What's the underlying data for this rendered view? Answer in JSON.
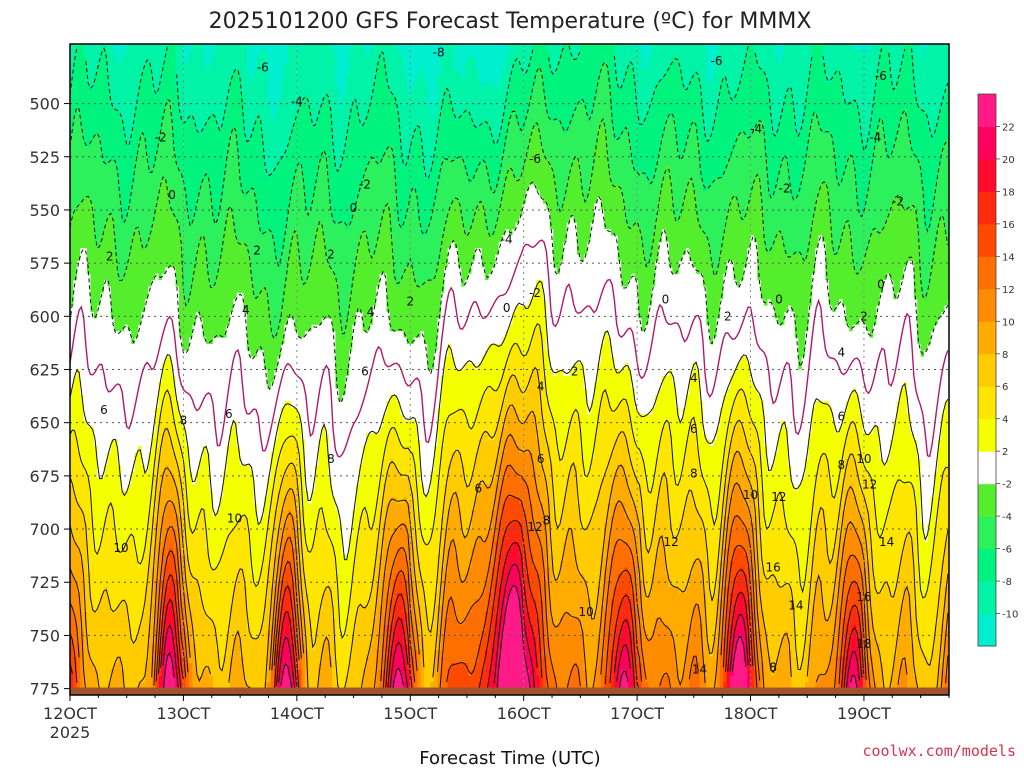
{
  "chart_data": {
    "type": "heatmap",
    "title": "2025101200 GFS Forecast Temperature (ºC) for MMMX",
    "xlabel": "Forecast Time (UTC)",
    "ylabel": "",
    "credit": "coolwx.com/models",
    "x_start_year": "2025",
    "x_ticks": [
      "12OCT",
      "13OCT",
      "14OCT",
      "15OCT",
      "16OCT",
      "17OCT",
      "18OCT",
      "19OCT"
    ],
    "x_days": [
      0,
      1,
      2,
      3,
      4,
      5,
      6,
      7
    ],
    "xlim": [
      0,
      7.75
    ],
    "y_ticks": [
      500,
      525,
      550,
      575,
      600,
      625,
      650,
      675,
      700,
      725,
      750,
      775
    ],
    "ylim": [
      778,
      472
    ],
    "colorbar": {
      "levels": [
        -12,
        -10,
        -8,
        -6,
        -4,
        -2,
        2,
        4,
        6,
        8,
        10,
        12,
        14,
        16,
        18,
        20,
        22,
        24
      ],
      "tick_labels": [
        "-10",
        "-8",
        "-6",
        "-4",
        "-2",
        "2",
        "4",
        "6",
        "8",
        "10",
        "12",
        "14",
        "16",
        "18",
        "20",
        "22"
      ],
      "colors": [
        "#00efcf",
        "#00f3a6",
        "#00f37c",
        "#2cf05c",
        "#55ee2c",
        "#ffffff",
        "#f4ff00",
        "#ffe600",
        "#ffcc00",
        "#ffab00",
        "#ff8c00",
        "#ff6e00",
        "#ff4a00",
        "#ff2a10",
        "#ff0a2c",
        "#ff005c",
        "#ff1a88"
      ],
      "colors_levels": [
        "-12..-10",
        "-10..-8",
        "-8..-6",
        "-6..-4",
        "-4..-2",
        "-2..2",
        "2..4",
        "4..6",
        "6..8",
        "8..10",
        "10..12",
        "12..14",
        "14..16",
        "16..18",
        "18..20",
        "20..22",
        "22..24"
      ]
    },
    "ground_color": "#a0522d",
    "contour_labels": [
      {
        "text": "-8",
        "day": 3.25,
        "p": 476
      },
      {
        "text": "-6",
        "day": 1.7,
        "p": 483
      },
      {
        "text": "-6",
        "day": 5.7,
        "p": 480
      },
      {
        "text": "-6",
        "day": 7.15,
        "p": 487
      },
      {
        "text": "-6",
        "day": 4.1,
        "p": 526
      },
      {
        "text": "-4",
        "day": 2.0,
        "p": 499
      },
      {
        "text": "-4",
        "day": 6.05,
        "p": 512
      },
      {
        "text": "-4",
        "day": 7.1,
        "p": 516
      },
      {
        "text": "-4",
        "day": 3.85,
        "p": 564
      },
      {
        "text": "-2",
        "day": 0.8,
        "p": 516
      },
      {
        "text": "-2",
        "day": 2.6,
        "p": 538
      },
      {
        "text": "-2",
        "day": 6.3,
        "p": 540
      },
      {
        "text": "-2",
        "day": 7.3,
        "p": 546
      },
      {
        "text": "-2",
        "day": 4.1,
        "p": 589
      },
      {
        "text": "0",
        "day": 0.9,
        "p": 543
      },
      {
        "text": "0",
        "day": 2.5,
        "p": 549
      },
      {
        "text": "0",
        "day": 3.85,
        "p": 596
      },
      {
        "text": "0",
        "day": 5.25,
        "p": 592
      },
      {
        "text": "0",
        "day": 6.25,
        "p": 592
      },
      {
        "text": "0",
        "day": 7.15,
        "p": 585
      },
      {
        "text": "2",
        "day": 0.35,
        "p": 572
      },
      {
        "text": "2",
        "day": 1.65,
        "p": 569
      },
      {
        "text": "2",
        "day": 2.3,
        "p": 571
      },
      {
        "text": "2",
        "day": 3.0,
        "p": 593
      },
      {
        "text": "2",
        "day": 4.45,
        "p": 626
      },
      {
        "text": "2",
        "day": 5.8,
        "p": 600
      },
      {
        "text": "2",
        "day": 7.0,
        "p": 600
      },
      {
        "text": "4",
        "day": 1.55,
        "p": 597
      },
      {
        "text": "4",
        "day": 2.65,
        "p": 598
      },
      {
        "text": "4",
        "day": 4.15,
        "p": 633
      },
      {
        "text": "4",
        "day": 5.5,
        "p": 629
      },
      {
        "text": "4",
        "day": 6.8,
        "p": 617
      },
      {
        "text": "6",
        "day": 0.3,
        "p": 644
      },
      {
        "text": "6",
        "day": 1.4,
        "p": 646
      },
      {
        "text": "6",
        "day": 2.6,
        "p": 626
      },
      {
        "text": "6",
        "day": 3.6,
        "p": 681
      },
      {
        "text": "6",
        "day": 4.15,
        "p": 667
      },
      {
        "text": "6",
        "day": 5.5,
        "p": 653
      },
      {
        "text": "6",
        "day": 6.8,
        "p": 647
      },
      {
        "text": "8",
        "day": 1.0,
        "p": 649
      },
      {
        "text": "8",
        "day": 2.3,
        "p": 667
      },
      {
        "text": "8",
        "day": 4.2,
        "p": 696
      },
      {
        "text": "8",
        "day": 5.5,
        "p": 674
      },
      {
        "text": "8",
        "day": 6.8,
        "p": 670
      },
      {
        "text": "10",
        "day": 0.45,
        "p": 709
      },
      {
        "text": "10",
        "day": 1.45,
        "p": 695
      },
      {
        "text": "10",
        "day": 4.55,
        "p": 739
      },
      {
        "text": "10",
        "day": 6.0,
        "p": 684
      },
      {
        "text": "10",
        "day": 7.0,
        "p": 667
      },
      {
        "text": "12",
        "day": 4.1,
        "p": 699
      },
      {
        "text": "12",
        "day": 5.3,
        "p": 706
      },
      {
        "text": "12",
        "day": 6.25,
        "p": 685
      },
      {
        "text": "12",
        "day": 7.05,
        "p": 679
      },
      {
        "text": "14",
        "day": 5.55,
        "p": 766
      },
      {
        "text": "14",
        "day": 6.4,
        "p": 736
      },
      {
        "text": "14",
        "day": 7.2,
        "p": 706
      },
      {
        "text": "16",
        "day": 6.2,
        "p": 718
      },
      {
        "text": "16",
        "day": 7.0,
        "p": 732
      },
      {
        "text": "18",
        "day": 7.0,
        "p": 754
      },
      {
        "text": "8",
        "day": 6.2,
        "p": 765
      }
    ]
  }
}
